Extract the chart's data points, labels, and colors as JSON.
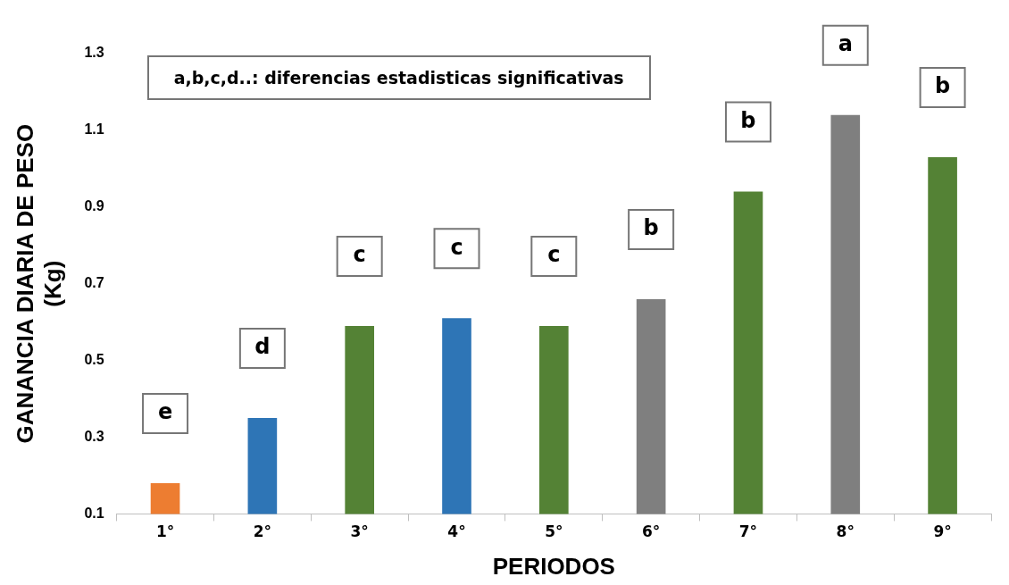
{
  "chart_data": {
    "type": "bar",
    "xlabel": "PERIODOS",
    "ylabel": "GANANCIA DIARIA DE PESO (Kg)",
    "categories": [
      "1°",
      "2°",
      "3°",
      "4°",
      "5°",
      "6°",
      "7°",
      "8°",
      "9°"
    ],
    "values": [
      0.18,
      0.35,
      0.59,
      0.61,
      0.59,
      0.66,
      0.94,
      1.14,
      1.03
    ],
    "colors": [
      "#ed7d31",
      "#2e75b6",
      "#548235",
      "#2e75b6",
      "#548235",
      "#7f7f7f",
      "#548235",
      "#7f7f7f",
      "#548235"
    ],
    "ylim": [
      0.1,
      1.3
    ],
    "yticks": [
      0.1,
      0.3,
      0.5,
      0.7,
      0.9,
      1.1,
      1.3
    ],
    "grid": false,
    "legend": false,
    "annotations": [
      "a,b,c,d..: diferencias estadisticas significativas",
      "e",
      "d",
      "c",
      "c",
      "c",
      "b",
      "b",
      "a",
      "b"
    ]
  }
}
